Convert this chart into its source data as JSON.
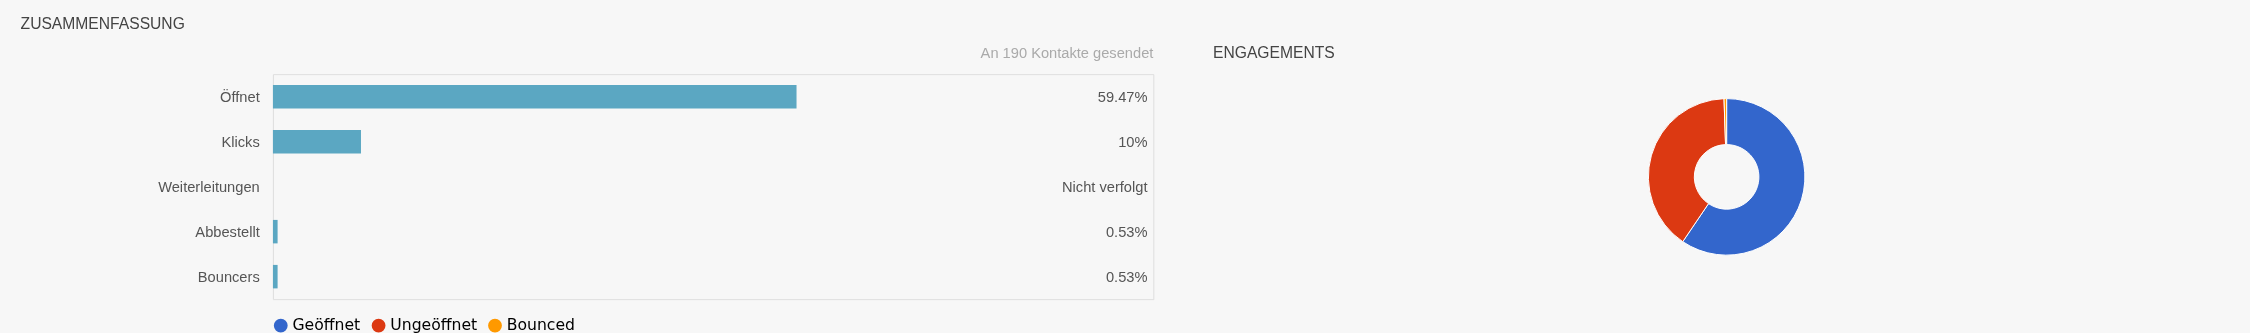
{
  "chart_data": [
    {
      "type": "bar",
      "orientation": "horizontal",
      "title": "ZUSAMMENFASSUNG",
      "subtitle": "An 190 Kontakte gesendet",
      "categories": [
        "Öffnet",
        "Klicks",
        "Weiterleitungen",
        "Abbestellt",
        "Bouncers"
      ],
      "values": [
        59.47,
        10,
        null,
        0.53,
        0.53
      ],
      "value_labels": [
        "59.47%",
        "10%",
        "Nicht verfolgt",
        "0.53%",
        "0.53%"
      ],
      "color": "#5ba7c2",
      "xlim": [
        0,
        100
      ],
      "tick_labels": "y"
    },
    {
      "type": "donut",
      "title": "ENGAGEMENTS",
      "categories": [
        "Geöffnet",
        "Ungeöffnet",
        "Bounced"
      ],
      "values": [
        59.47,
        40.0,
        0.53
      ],
      "colors": [
        "#3366cc",
        "#dc3912",
        "#ff9900"
      ],
      "legend": "bottom"
    }
  ]
}
